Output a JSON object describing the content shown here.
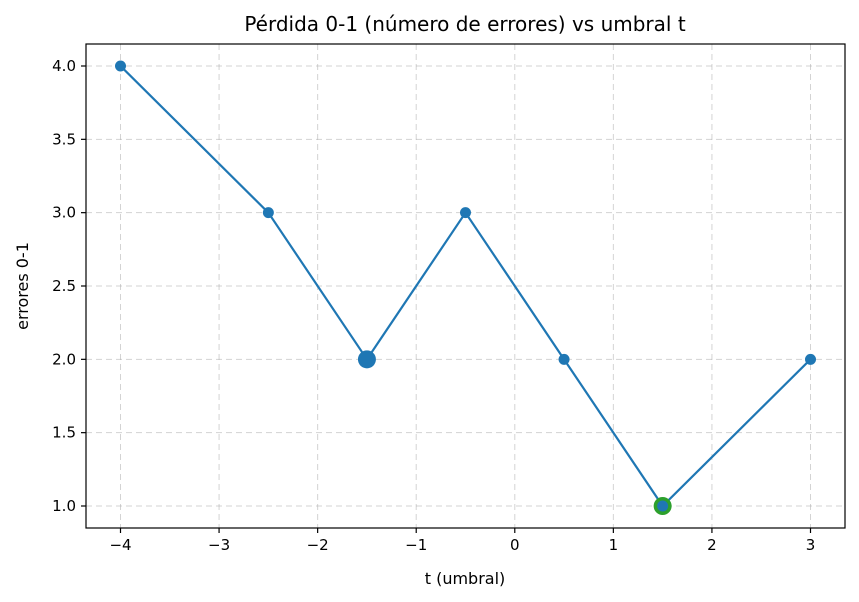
{
  "chart_data": {
    "type": "line",
    "title": "Pérdida 0-1 (número de errores) vs umbral t",
    "xlabel": "t (umbral)",
    "ylabel": "errores 0-1",
    "xlim": [
      -4.35,
      3.35
    ],
    "ylim": [
      0.85,
      4.15
    ],
    "xticks": [
      -4,
      -3,
      -2,
      -1,
      0,
      1,
      2,
      3
    ],
    "xtick_labels": [
      "−4",
      "−3",
      "−2",
      "−1",
      "0",
      "1",
      "2",
      "3"
    ],
    "yticks": [
      1.0,
      1.5,
      2.0,
      2.5,
      3.0,
      3.5,
      4.0
    ],
    "ytick_labels": [
      "1.0",
      "1.5",
      "2.0",
      "2.5",
      "3.0",
      "3.5",
      "4.0"
    ],
    "grid": true,
    "series": [
      {
        "x": [
          -4,
          -2.5,
          -1.5,
          -0.5,
          0.5,
          1.5,
          3
        ],
        "y": [
          4,
          3,
          2,
          3,
          2,
          1,
          2
        ],
        "color": "#1f77b4"
      }
    ],
    "highlights": [
      {
        "x": -1.5,
        "y": 2,
        "color": "#1f77b4"
      },
      {
        "x": 1.5,
        "y": 1,
        "color": "#2ca02c"
      }
    ]
  }
}
